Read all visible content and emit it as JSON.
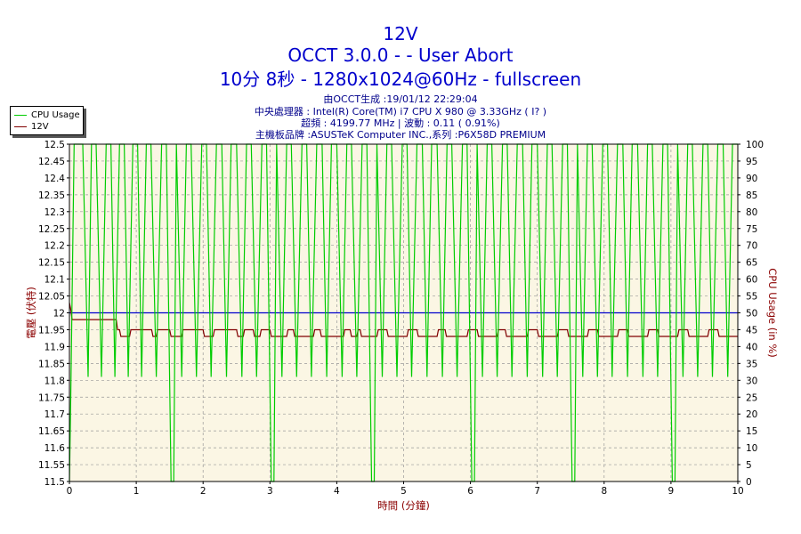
{
  "header": {
    "title": "12V",
    "subtitle": "OCCT 3.0.0 -  - User Abort",
    "run_info": "10分 8秒 - 1280x1024@60Hz - fullscreen"
  },
  "info_lines": {
    "generated": "由OCCT生成 :19/01/12 22:29:04",
    "cpu": "中央處理器 : Intel(R) Core(TM) i7 CPU X 980 @ 3.33GHz (  I? )",
    "freq": "超頻 : 4199.77 MHz | 波動 : 0.11 ( 0.91%)",
    "board": "主機板品牌 :ASUSTeK Computer INC.,系列 :P6X58D PREMIUM"
  },
  "colors": {
    "cpu_usage": "#00cc00",
    "voltage": "#800000",
    "reference": "#0000cc",
    "plot_bg": "#fbf6e4",
    "grid": "#999999"
  },
  "chart_data": {
    "type": "line",
    "xlabel": "時間 (分鐘)",
    "ylabel_left": "電壓 (伏特)",
    "ylabel_right": "CPU Usage (in %)",
    "xlim": [
      0,
      10
    ],
    "ylim_left": [
      11.5,
      12.5
    ],
    "ylim_right": [
      0,
      100
    ],
    "x_ticks": [
      "0",
      "1",
      "2",
      "3",
      "4",
      "5",
      "6",
      "7",
      "8",
      "9",
      "10"
    ],
    "y_left_ticks": [
      "11.5",
      "11.55",
      "11.6",
      "11.65",
      "11.7",
      "11.75",
      "11.8",
      "11.85",
      "11.9",
      "11.95",
      "12",
      "12.05",
      "12.1",
      "12.15",
      "12.2",
      "12.25",
      "12.3",
      "12.35",
      "12.4",
      "12.45",
      "12.5"
    ],
    "y_right_ticks": [
      "0",
      "5",
      "10",
      "15",
      "20",
      "25",
      "30",
      "35",
      "40",
      "45",
      "50",
      "55",
      "60",
      "65",
      "70",
      "75",
      "80",
      "85",
      "90",
      "95",
      "100"
    ],
    "legend": [
      "CPU Usage",
      "12V"
    ],
    "reference_line": 12.0,
    "series": [
      {
        "name": "12V",
        "axis": "left",
        "x": [
          0,
          0.02,
          0.04,
          0.05,
          0.7,
          0.72,
          0.75,
          0.77,
          0.8,
          0.82,
          0.9,
          0.92,
          1.23,
          1.25,
          1.3,
          1.32,
          1.5,
          1.52,
          1.68,
          1.7,
          2.0,
          2.02,
          2.15,
          2.17,
          2.5,
          2.52,
          2.6,
          2.62,
          2.75,
          2.77,
          2.85,
          2.87,
          3.0,
          3.02,
          3.25,
          3.27,
          3.35,
          3.37,
          3.65,
          3.67,
          3.75,
          3.77,
          4.1,
          4.12,
          4.2,
          4.22,
          4.3,
          4.32,
          4.35,
          4.37,
          4.6,
          4.62,
          4.75,
          4.77,
          5.05,
          5.07,
          5.2,
          5.22,
          5.5,
          5.52,
          5.62,
          5.64,
          5.95,
          5.97,
          6.1,
          6.12,
          6.4,
          6.42,
          6.52,
          6.54,
          6.85,
          6.87,
          7.0,
          7.02,
          7.3,
          7.32,
          7.45,
          7.47,
          7.75,
          7.77,
          7.9,
          7.92,
          8.2,
          8.22,
          8.35,
          8.37,
          8.65,
          8.67,
          8.8,
          8.82,
          9.1,
          9.12,
          9.25,
          9.27,
          9.55,
          9.57,
          9.7,
          9.72,
          9.98,
          10.0
        ],
        "y": [
          12.03,
          12.01,
          11.98,
          11.98,
          11.98,
          11.95,
          11.95,
          11.93,
          11.93,
          11.93,
          11.93,
          11.95,
          11.95,
          11.93,
          11.93,
          11.95,
          11.95,
          11.93,
          11.93,
          11.95,
          11.95,
          11.93,
          11.93,
          11.95,
          11.95,
          11.93,
          11.93,
          11.95,
          11.95,
          11.93,
          11.93,
          11.95,
          11.95,
          11.93,
          11.93,
          11.95,
          11.95,
          11.93,
          11.93,
          11.95,
          11.95,
          11.93,
          11.93,
          11.95,
          11.95,
          11.93,
          11.93,
          11.95,
          11.95,
          11.93,
          11.93,
          11.95,
          11.95,
          11.93,
          11.93,
          11.95,
          11.95,
          11.93,
          11.93,
          11.95,
          11.95,
          11.93,
          11.93,
          11.95,
          11.95,
          11.93,
          11.93,
          11.95,
          11.95,
          11.93,
          11.93,
          11.95,
          11.95,
          11.93,
          11.93,
          11.95,
          11.95,
          11.93,
          11.93,
          11.95,
          11.95,
          11.93,
          11.93,
          11.95,
          11.95,
          11.93,
          11.93,
          11.95,
          11.95,
          11.93,
          11.93,
          11.95,
          11.95,
          11.93,
          11.93,
          11.95,
          11.95,
          11.93,
          11.93,
          11.93
        ]
      },
      {
        "name": "CPU Usage",
        "axis": "right",
        "x": [
          0,
          0.02,
          0.07,
          0.12,
          0.2,
          0.28,
          0.33,
          0.4,
          0.48,
          0.55,
          0.62,
          0.68,
          0.75,
          0.82,
          0.88,
          0.95,
          1.02,
          1.08,
          1.15,
          1.22,
          1.3,
          1.38,
          1.45,
          1.52,
          1.56,
          1.6,
          1.68,
          1.75,
          1.82,
          1.9,
          1.98,
          2.05,
          2.12,
          2.2,
          2.28,
          2.35,
          2.42,
          2.5,
          2.58,
          2.65,
          2.72,
          2.8,
          2.88,
          2.95,
          3.02,
          3.06,
          3.1,
          3.18,
          3.25,
          3.32,
          3.4,
          3.48,
          3.55,
          3.62,
          3.7,
          3.78,
          3.85,
          3.92,
          4.0,
          4.08,
          4.15,
          4.22,
          4.3,
          4.38,
          4.45,
          4.52,
          4.56,
          4.6,
          4.68,
          4.75,
          4.82,
          4.9,
          4.98,
          5.05,
          5.12,
          5.2,
          5.28,
          5.35,
          5.42,
          5.5,
          5.58,
          5.65,
          5.72,
          5.8,
          5.88,
          5.95,
          6.02,
          6.06,
          6.1,
          6.18,
          6.25,
          6.32,
          6.4,
          6.48,
          6.55,
          6.62,
          6.7,
          6.78,
          6.85,
          6.92,
          7.0,
          7.08,
          7.15,
          7.22,
          7.3,
          7.38,
          7.45,
          7.52,
          7.56,
          7.6,
          7.68,
          7.75,
          7.82,
          7.9,
          7.98,
          8.05,
          8.12,
          8.2,
          8.28,
          8.35,
          8.42,
          8.5,
          8.58,
          8.65,
          8.72,
          8.8,
          8.88,
          8.95,
          9.02,
          9.06,
          9.1,
          9.18,
          9.25,
          9.32,
          9.4,
          9.48,
          9.55,
          9.62,
          9.7,
          9.78,
          9.85,
          9.92,
          10.0
        ],
        "y": [
          0,
          25,
          100,
          100,
          100,
          31,
          100,
          100,
          31,
          100,
          100,
          31,
          100,
          100,
          31,
          100,
          100,
          31,
          100,
          100,
          31,
          100,
          100,
          0,
          0,
          100,
          31,
          100,
          100,
          31,
          100,
          100,
          31,
          100,
          100,
          31,
          100,
          100,
          31,
          100,
          100,
          31,
          100,
          100,
          0,
          0,
          100,
          31,
          100,
          100,
          31,
          100,
          100,
          31,
          100,
          100,
          31,
          100,
          100,
          31,
          100,
          100,
          31,
          100,
          100,
          0,
          0,
          100,
          31,
          100,
          100,
          31,
          100,
          100,
          31,
          100,
          100,
          31,
          100,
          100,
          31,
          100,
          100,
          31,
          100,
          100,
          0,
          0,
          100,
          31,
          100,
          100,
          31,
          100,
          100,
          31,
          100,
          100,
          31,
          100,
          100,
          31,
          100,
          100,
          31,
          100,
          100,
          0,
          0,
          100,
          31,
          100,
          100,
          31,
          100,
          100,
          31,
          100,
          100,
          31,
          100,
          100,
          31,
          100,
          100,
          31,
          100,
          100,
          0,
          0,
          100,
          31,
          100,
          100,
          31,
          100,
          100,
          31,
          100,
          100,
          31,
          100,
          100
        ]
      }
    ]
  }
}
